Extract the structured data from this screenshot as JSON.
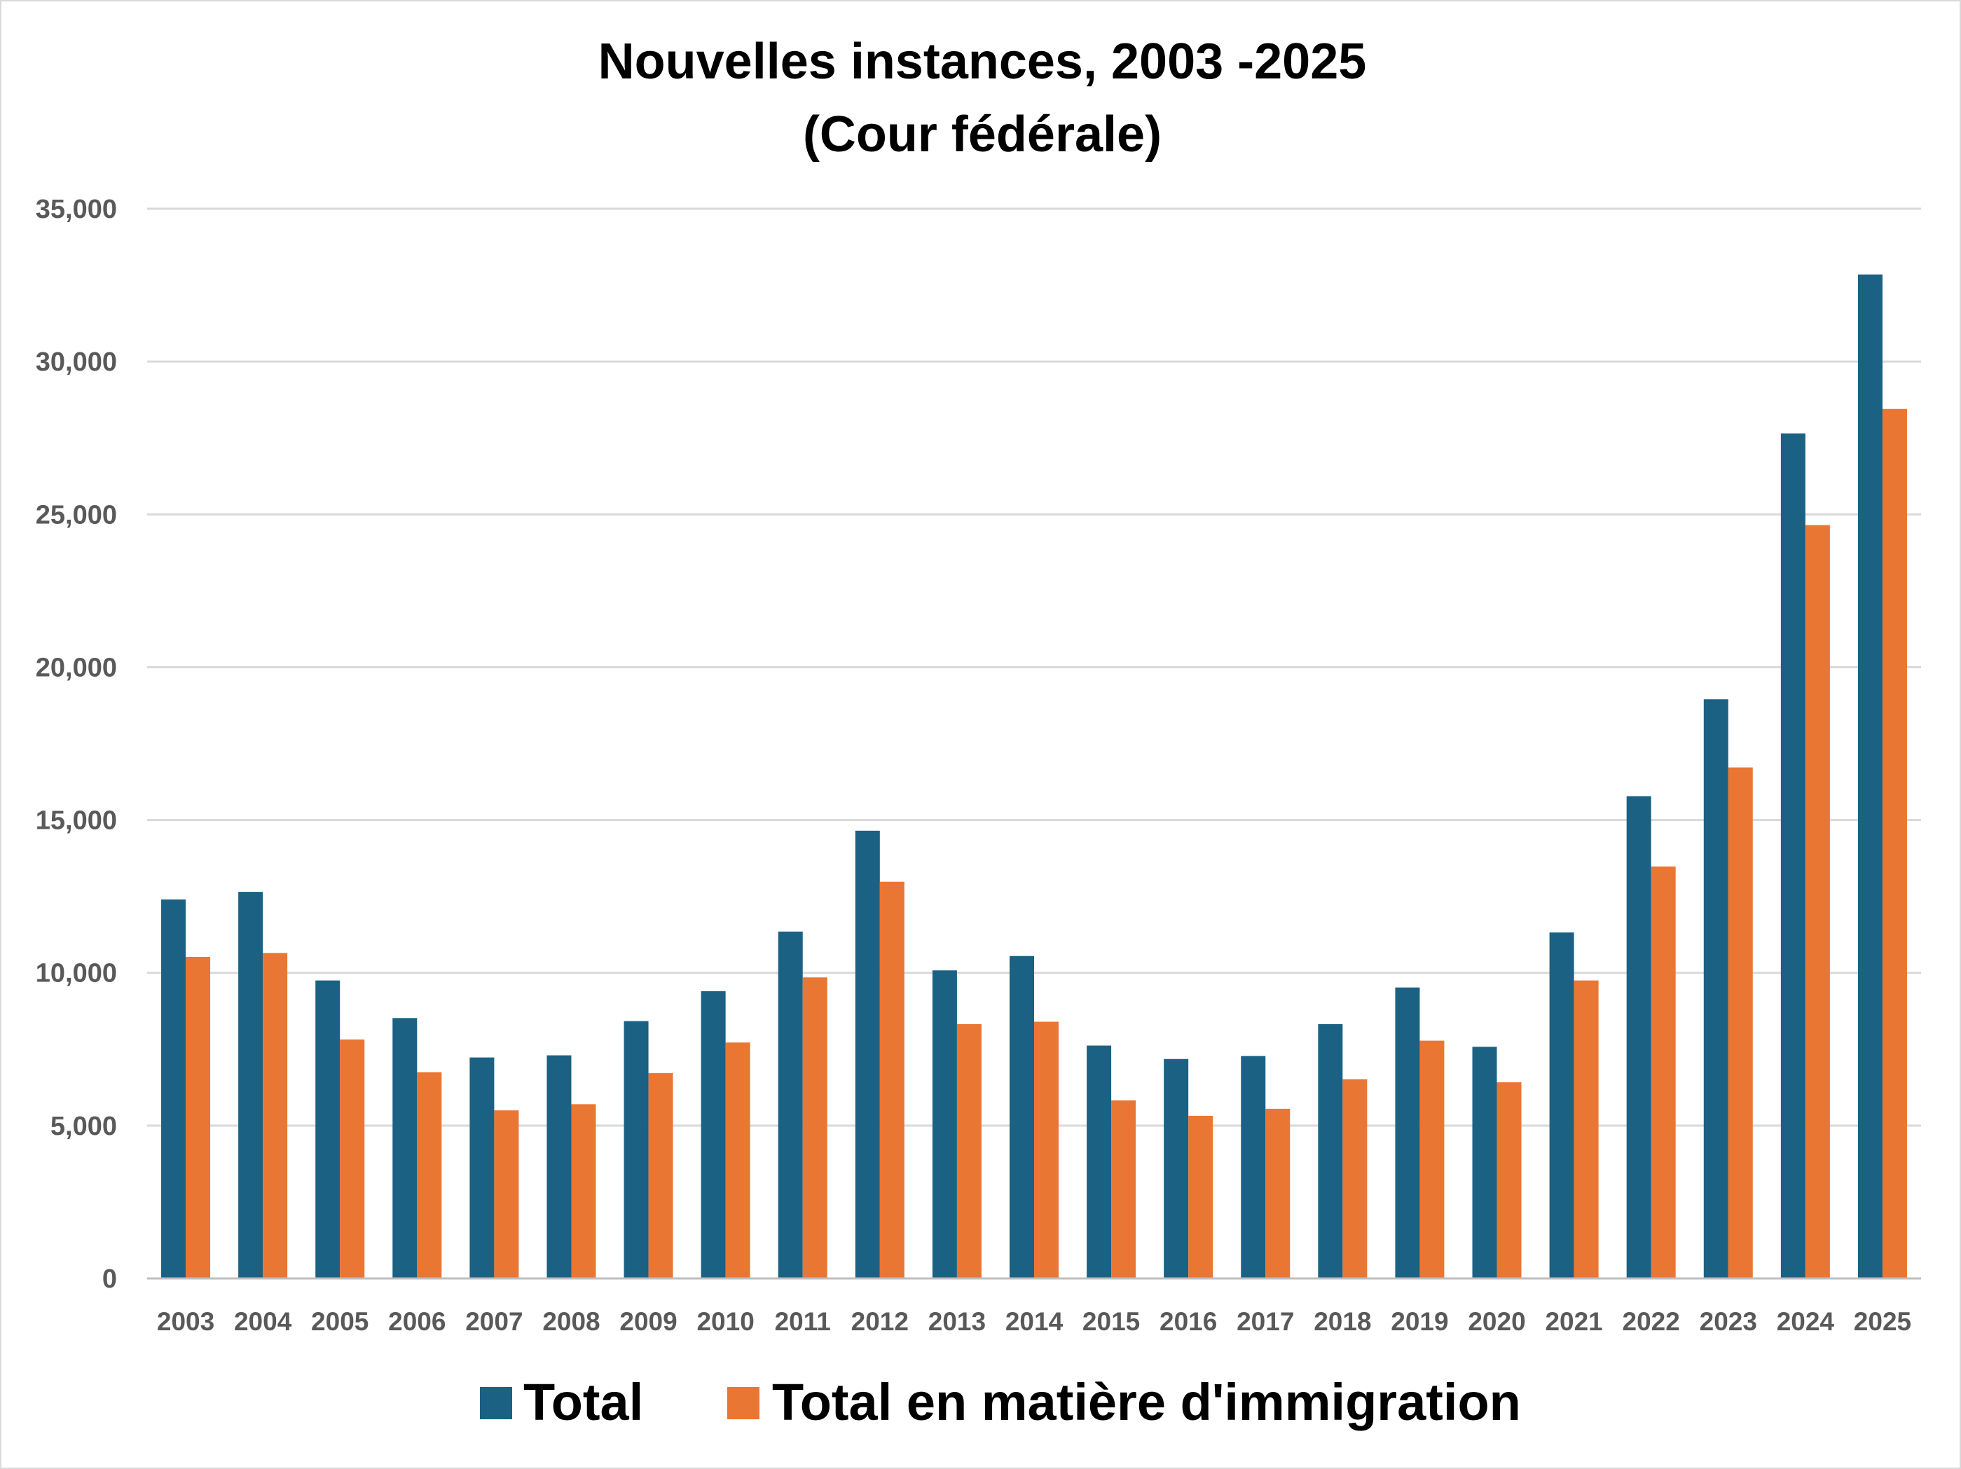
{
  "chart_data": {
    "type": "bar",
    "title": "Nouvelles instances, 2003 -2025",
    "subtitle": "(Cour fédérale)",
    "xlabel": "",
    "ylabel": "",
    "ylim": [
      0,
      35000
    ],
    "yticks": [
      0,
      5000,
      10000,
      15000,
      20000,
      25000,
      30000,
      35000
    ],
    "ytick_labels": [
      "0",
      "5,000",
      "10,000",
      "15,000",
      "20,000",
      "25,000",
      "30,000",
      "35,000"
    ],
    "grid": true,
    "legend_position": "bottom",
    "categories": [
      "2003",
      "2004",
      "2005",
      "2006",
      "2007",
      "2008",
      "2009",
      "2010",
      "2011",
      "2012",
      "2013",
      "2014",
      "2015",
      "2016",
      "2017",
      "2018",
      "2019",
      "2020",
      "2021",
      "2022",
      "2023",
      "2024",
      "2025"
    ],
    "series": [
      {
        "name": "Total",
        "color": "#1b6184",
        "values": [
          12400,
          12650,
          9750,
          8520,
          7230,
          7300,
          8420,
          9400,
          11350,
          14650,
          10080,
          10550,
          7620,
          7180,
          7280,
          8320,
          9520,
          7580,
          11320,
          15780,
          18950,
          27650,
          32850
        ]
      },
      {
        "name": "Total en matière d'immigration",
        "color": "#ea7634",
        "values": [
          10520,
          10650,
          7820,
          6750,
          5500,
          5700,
          6720,
          7720,
          9850,
          12980,
          8320,
          8400,
          5830,
          5320,
          5550,
          6520,
          7780,
          6420,
          9750,
          13480,
          16720,
          24650,
          28450
        ]
      }
    ]
  }
}
